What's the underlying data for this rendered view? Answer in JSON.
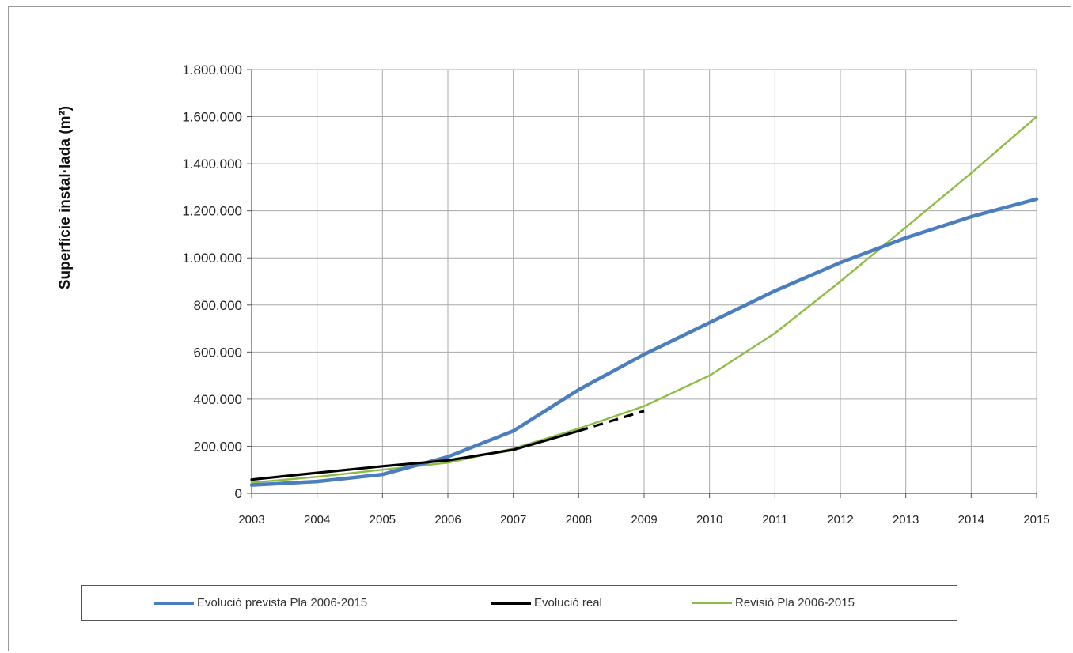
{
  "chart_data": {
    "type": "line",
    "title": "",
    "xlabel": "",
    "ylabel": "Superfície instal·lada (m²)",
    "x": [
      2003,
      2004,
      2005,
      2006,
      2007,
      2008,
      2009,
      2010,
      2011,
      2012,
      2013,
      2014,
      2015
    ],
    "xlim": [
      2003,
      2015
    ],
    "ylim": [
      0,
      1800000
    ],
    "y_ticks": [
      0,
      200000,
      400000,
      600000,
      800000,
      1000000,
      1200000,
      1400000,
      1600000,
      1800000
    ],
    "y_tick_labels": [
      "0",
      "200.000",
      "400.000",
      "600.000",
      "800.000",
      "1.000.000",
      "1.200.000",
      "1.400.000",
      "1.600.000",
      "1.800.000"
    ],
    "x_tick_labels": [
      "2003",
      "2004",
      "2005",
      "2006",
      "2007",
      "2008",
      "2009",
      "2010",
      "2011",
      "2012",
      "2013",
      "2014",
      "2015"
    ],
    "grid": true,
    "legend_position": "bottom",
    "series": [
      {
        "name": "Evolució prevista Pla 2006-2015",
        "color": "#4a7ebf",
        "style": "solid",
        "x": [
          2003,
          2004,
          2005,
          2006,
          2007,
          2008,
          2009,
          2010,
          2011,
          2012,
          2013,
          2014,
          2015
        ],
        "values": [
          35000,
          50000,
          80000,
          155000,
          265000,
          440000,
          590000,
          725000,
          860000,
          980000,
          1085000,
          1175000,
          1250000
        ]
      },
      {
        "name": "Evolució real",
        "color": "#000000",
        "style": "solid",
        "x": [
          2003,
          2004,
          2005,
          2006,
          2007,
          2008
        ],
        "values": [
          58000,
          87000,
          115000,
          140000,
          185000,
          265000
        ]
      },
      {
        "name": "",
        "color": "#000000",
        "style": "dashed",
        "x": [
          2008,
          2009
        ],
        "values": [
          265000,
          350000
        ]
      },
      {
        "name": "Revisió Pla 2006-2015",
        "color": "#8ebd45",
        "style": "solid",
        "x": [
          2003,
          2004,
          2005,
          2006,
          2007,
          2008,
          2009,
          2010,
          2011,
          2012,
          2013,
          2014,
          2015
        ],
        "values": [
          45000,
          70000,
          100000,
          130000,
          190000,
          275000,
          370000,
          500000,
          680000,
          900000,
          1130000,
          1360000,
          1600000
        ]
      }
    ]
  },
  "legend": {
    "items": [
      {
        "label": "Evolució prevista Pla 2006-2015",
        "color": "#4a7ebf"
      },
      {
        "label": "Evolució real",
        "color": "#000000"
      },
      {
        "label": "Revisió Pla 2006-2015",
        "color": "#8ebd45"
      }
    ]
  }
}
